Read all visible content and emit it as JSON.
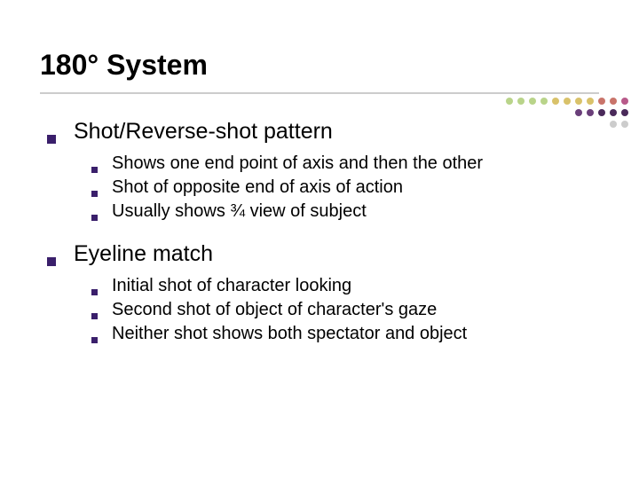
{
  "title": "180° System",
  "title_color": "#000000",
  "title_fontsize": 32,
  "underline_color": "#cccccc",
  "bullet_color": "#3a1f6b",
  "text_color": "#000000",
  "l1_fontsize": 25,
  "l2_fontsize": 20,
  "sections": [
    {
      "heading": "Shot/Reverse-shot pattern",
      "items": [
        "Shows one end point of axis and then the other",
        "Shot of opposite end of axis of action",
        "Usually shows ¾ view of subject"
      ]
    },
    {
      "heading": "Eyeline match",
      "items": [
        "Initial shot of character looking",
        "Second shot of object of character's gaze",
        "Neither shot shows both spectator and object"
      ]
    }
  ],
  "decoration": {
    "rows": [
      {
        "colors": [
          "#b9d48a",
          "#b9d48a",
          "#b9d48a",
          "#b9d48a",
          "#d9c26a",
          "#d9c26a",
          "#d9c26a",
          "#d9c26a",
          "#c9746a",
          "#c9746a",
          "#b85a8a"
        ]
      },
      {
        "colors": [
          "#6a3f7a",
          "#6a3f7a",
          "#4a2a5a",
          "#4a2a5a",
          "#4a2a5a"
        ]
      },
      {
        "colors": [
          "#cccccc",
          "#cccccc"
        ]
      }
    ]
  }
}
